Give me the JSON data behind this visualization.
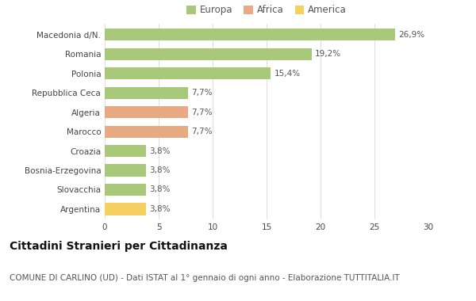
{
  "categories": [
    "Macedonia d/N.",
    "Romania",
    "Polonia",
    "Repubblica Ceca",
    "Algeria",
    "Marocco",
    "Croazia",
    "Bosnia-Erzegovina",
    "Slovacchia",
    "Argentina"
  ],
  "values": [
    26.9,
    19.2,
    15.4,
    7.7,
    7.7,
    7.7,
    3.8,
    3.8,
    3.8,
    3.8
  ],
  "labels": [
    "26,9%",
    "19,2%",
    "15,4%",
    "7,7%",
    "7,7%",
    "7,7%",
    "3,8%",
    "3,8%",
    "3,8%",
    "3,8%"
  ],
  "continents": [
    "Europa",
    "Europa",
    "Europa",
    "Europa",
    "Africa",
    "Africa",
    "Europa",
    "Europa",
    "Europa",
    "America"
  ],
  "colors": {
    "Europa": "#a8c87a",
    "Africa": "#e8aa82",
    "America": "#f5d060"
  },
  "legend": [
    "Europa",
    "Africa",
    "America"
  ],
  "legend_colors": [
    "#a8c87a",
    "#e8aa82",
    "#f5d060"
  ],
  "xlim": [
    0,
    30
  ],
  "xticks": [
    0,
    5,
    10,
    15,
    20,
    25,
    30
  ],
  "title": "Cittadini Stranieri per Cittadinanza",
  "subtitle": "COMUNE DI CARLINO (UD) - Dati ISTAT al 1° gennaio di ogni anno - Elaborazione TUTTITALIA.IT",
  "bg_color": "#ffffff",
  "grid_color": "#e0e0e0",
  "bar_height": 0.62,
  "title_fontsize": 10,
  "subtitle_fontsize": 7.5,
  "label_fontsize": 7.5,
  "tick_fontsize": 7.5,
  "legend_fontsize": 8.5
}
